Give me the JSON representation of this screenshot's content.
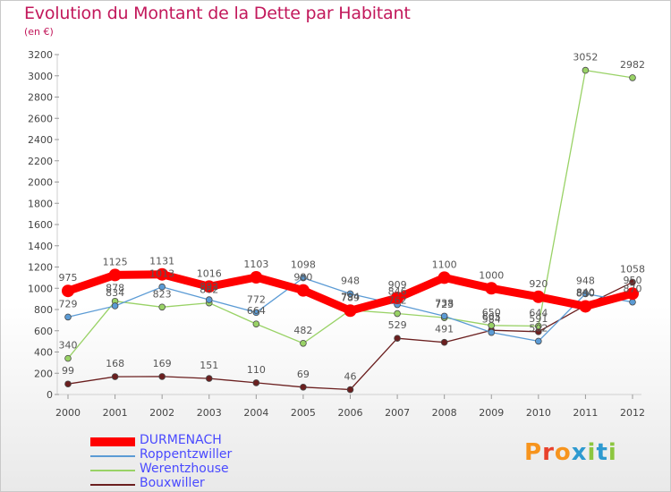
{
  "title": "Evolution du Montant de la Dette par Habitant",
  "subtitle": "(en €)",
  "chart_data": {
    "type": "line",
    "x": [
      "2000",
      "2001",
      "2002",
      "2003",
      "2004",
      "2005",
      "2006",
      "2007",
      "2008",
      "2009",
      "2010",
      "2011",
      "2012"
    ],
    "ylim": [
      0,
      3200
    ],
    "yticks": [
      0,
      200,
      400,
      600,
      800,
      1000,
      1200,
      1400,
      1600,
      1800,
      2000,
      2200,
      2400,
      2600,
      2800,
      3000,
      3200
    ],
    "grid": false,
    "legend_position": "bottom-left",
    "series": [
      {
        "name": "DURMENACH",
        "color": "#ff0000",
        "values": [
          975,
          1125,
          1131,
          1016,
          1103,
          980,
          789,
          909,
          1100,
          1000,
          920,
          830,
          950
        ]
      },
      {
        "name": "Roppentzwiller",
        "color": "#5b9bd5",
        "values": [
          729,
          834,
          1013,
          892,
          772,
          1098,
          948,
          846,
          738,
          584,
          502,
          948,
          870
        ]
      },
      {
        "name": "Werentzhouse",
        "color": "#99d266",
        "values": [
          340,
          878,
          823,
          862,
          664,
          482,
          794,
          762,
          723,
          650,
          644,
          3052,
          2982
        ]
      },
      {
        "name": "Bouxwiller",
        "color": "#6b1f1f",
        "values": [
          99,
          168,
          169,
          151,
          110,
          69,
          46,
          529,
          491,
          605,
          591,
          840,
          1058
        ]
      }
    ],
    "labels": [
      {
        "series": 0,
        "i": 0,
        "text": "975"
      },
      {
        "series": 0,
        "i": 1,
        "text": "1125"
      },
      {
        "series": 0,
        "i": 2,
        "text": "1131"
      },
      {
        "series": 0,
        "i": 3,
        "text": "1016"
      },
      {
        "series": 0,
        "i": 4,
        "text": "1103"
      },
      {
        "series": 0,
        "i": 5,
        "text": "980"
      },
      {
        "series": 0,
        "i": 6,
        "text": "789"
      },
      {
        "series": 0,
        "i": 7,
        "text": "909"
      },
      {
        "series": 0,
        "i": 8,
        "text": "1100"
      },
      {
        "series": 0,
        "i": 9,
        "text": "1000"
      },
      {
        "series": 0,
        "i": 10,
        "text": "920"
      },
      {
        "series": 0,
        "i": 11,
        "text": "830"
      },
      {
        "series": 0,
        "i": 12,
        "text": "950"
      },
      {
        "series": 1,
        "i": 0,
        "text": "729"
      },
      {
        "series": 1,
        "i": 1,
        "text": "834"
      },
      {
        "series": 1,
        "i": 2,
        "text": "1013"
      },
      {
        "series": 1,
        "i": 3,
        "text": "892"
      },
      {
        "series": 1,
        "i": 4,
        "text": "772"
      },
      {
        "series": 1,
        "i": 5,
        "text": "1098"
      },
      {
        "series": 1,
        "i": 6,
        "text": "948"
      },
      {
        "series": 1,
        "i": 7,
        "text": "846"
      },
      {
        "series": 1,
        "i": 8,
        "text": "738"
      },
      {
        "series": 1,
        "i": 9,
        "text": "584"
      },
      {
        "series": 1,
        "i": 10,
        "text": "502"
      },
      {
        "series": 1,
        "i": 11,
        "text": "948"
      },
      {
        "series": 1,
        "i": 12,
        "text": "870"
      },
      {
        "series": 2,
        "i": 0,
        "text": "340"
      },
      {
        "series": 2,
        "i": 1,
        "text": "878"
      },
      {
        "series": 2,
        "i": 2,
        "text": "823"
      },
      {
        "series": 2,
        "i": 3,
        "text": "862"
      },
      {
        "series": 2,
        "i": 4,
        "text": "664"
      },
      {
        "series": 2,
        "i": 5,
        "text": "482"
      },
      {
        "series": 2,
        "i": 6,
        "text": "794"
      },
      {
        "series": 2,
        "i": 7,
        "text": "762"
      },
      {
        "series": 2,
        "i": 8,
        "text": "723"
      },
      {
        "series": 2,
        "i": 9,
        "text": "650"
      },
      {
        "series": 2,
        "i": 10,
        "text": "644"
      },
      {
        "series": 2,
        "i": 11,
        "text": "3052"
      },
      {
        "series": 2,
        "i": 12,
        "text": "2982"
      },
      {
        "series": 3,
        "i": 0,
        "text": "99"
      },
      {
        "series": 3,
        "i": 1,
        "text": "168"
      },
      {
        "series": 3,
        "i": 2,
        "text": "169"
      },
      {
        "series": 3,
        "i": 3,
        "text": "151"
      },
      {
        "series": 3,
        "i": 4,
        "text": "110"
      },
      {
        "series": 3,
        "i": 5,
        "text": "69"
      },
      {
        "series": 3,
        "i": 6,
        "text": "46"
      },
      {
        "series": 3,
        "i": 7,
        "text": "529"
      },
      {
        "series": 3,
        "i": 8,
        "text": "491"
      },
      {
        "series": 3,
        "i": 9,
        "text": "605"
      },
      {
        "series": 3,
        "i": 10,
        "text": "591"
      },
      {
        "series": 3,
        "i": 11,
        "text": "840"
      },
      {
        "series": 3,
        "i": 12,
        "text": "1058"
      }
    ]
  },
  "legend": {
    "items": [
      {
        "label": "DURMENACH",
        "color": "#ff0000"
      },
      {
        "label": "Roppentzwiller",
        "color": "#5b9bd5"
      },
      {
        "label": "Werentzhouse",
        "color": "#99d266"
      },
      {
        "label": "Bouxwiller",
        "color": "#6b1f1f"
      }
    ]
  },
  "logo": {
    "text": "Proxiti",
    "letter_colors": [
      "#f7941d",
      "#e8412c",
      "#f7941d",
      "#2e9ad0",
      "#8cc63f",
      "#2e9ad0",
      "#8cc63f"
    ]
  }
}
